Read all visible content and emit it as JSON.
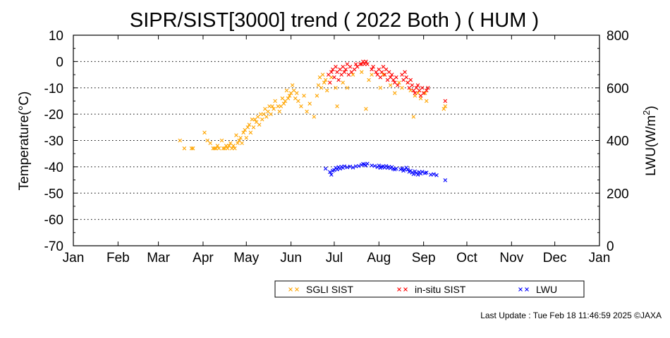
{
  "chart_data": {
    "type": "scatter",
    "title": "SIPR/SIST[3000] trend ( 2022 Both ) ( HUM )",
    "ylabel": "Temperature(°C)",
    "y2label_main": "LWU(W/m",
    "y2label_sup": "2",
    "y2label_end": ")",
    "xlim": [
      0,
      365
    ],
    "ylim": [
      -70,
      10
    ],
    "y2lim": [
      0,
      800
    ],
    "y_ticks": [
      10,
      0,
      -10,
      -20,
      -30,
      -40,
      -50,
      -60,
      -70
    ],
    "y2_ticks": [
      800,
      600,
      400,
      200,
      0
    ],
    "grid_values": [
      0,
      -10,
      -20,
      -30,
      -40,
      -50,
      -60
    ],
    "grid": true,
    "x_ticks": [
      {
        "day": 0,
        "label": "Jan"
      },
      {
        "day": 31,
        "label": "Feb"
      },
      {
        "day": 59,
        "label": "Mar"
      },
      {
        "day": 90,
        "label": "Apr"
      },
      {
        "day": 120,
        "label": "May"
      },
      {
        "day": 151,
        "label": "Jun"
      },
      {
        "day": 181,
        "label": "Jul"
      },
      {
        "day": 212,
        "label": "Aug"
      },
      {
        "day": 243,
        "label": "Sep"
      },
      {
        "day": 273,
        "label": "Oct"
      },
      {
        "day": 304,
        "label": "Nov"
      },
      {
        "day": 334,
        "label": "Dec"
      },
      {
        "day": 365,
        "label": "Jan"
      }
    ],
    "legend_position": "bottom",
    "series": [
      {
        "name": "SGLI SIST",
        "color": "#ffa500",
        "axis": "left",
        "points": [
          [
            74,
            -30
          ],
          [
            77,
            -33
          ],
          [
            82,
            -33
          ],
          [
            83,
            -33
          ],
          [
            91,
            -27
          ],
          [
            93,
            -30
          ],
          [
            95,
            -31
          ],
          [
            97,
            -33
          ],
          [
            98,
            -33
          ],
          [
            99,
            -33
          ],
          [
            100,
            -32
          ],
          [
            101,
            -33
          ],
          [
            103,
            -30
          ],
          [
            104,
            -33
          ],
          [
            105,
            -33
          ],
          [
            106,
            -32
          ],
          [
            107,
            -33
          ],
          [
            108,
            -32
          ],
          [
            109,
            -31
          ],
          [
            110,
            -33
          ],
          [
            111,
            -32
          ],
          [
            112,
            -33
          ],
          [
            113,
            -28
          ],
          [
            114,
            -31
          ],
          [
            115,
            -30
          ],
          [
            116,
            -29
          ],
          [
            117,
            -31
          ],
          [
            118,
            -27
          ],
          [
            119,
            -26
          ],
          [
            120,
            -29
          ],
          [
            121,
            -25
          ],
          [
            122,
            -24
          ],
          [
            123,
            -27
          ],
          [
            124,
            -22
          ],
          [
            125,
            -25
          ],
          [
            126,
            -22
          ],
          [
            127,
            -23
          ],
          [
            128,
            -21
          ],
          [
            129,
            -24
          ],
          [
            130,
            -20
          ],
          [
            131,
            -22
          ],
          [
            132,
            -20
          ],
          [
            133,
            -18
          ],
          [
            134,
            -21
          ],
          [
            135,
            -19
          ],
          [
            136,
            -17
          ],
          [
            137,
            -20
          ],
          [
            138,
            -17
          ],
          [
            139,
            -18
          ],
          [
            140,
            -15
          ],
          [
            142,
            -17
          ],
          [
            143,
            -19
          ],
          [
            144,
            -17
          ],
          [
            145,
            -14
          ],
          [
            146,
            -16
          ],
          [
            147,
            -15
          ],
          [
            148,
            -11
          ],
          [
            149,
            -14
          ],
          [
            150,
            -13
          ],
          [
            151,
            -12
          ],
          [
            152,
            -9
          ],
          [
            153,
            -11
          ],
          [
            154,
            -14
          ],
          [
            155,
            -12
          ],
          [
            156,
            -15
          ],
          [
            158,
            -17
          ],
          [
            160,
            -13
          ],
          [
            162,
            -19
          ],
          [
            164,
            -16
          ],
          [
            167,
            -21
          ],
          [
            169,
            -13
          ],
          [
            170,
            -9
          ],
          [
            171,
            -6
          ],
          [
            172,
            -10
          ],
          [
            173,
            -5
          ],
          [
            174,
            -8
          ],
          [
            175,
            -7
          ],
          [
            176,
            -11
          ],
          [
            179,
            -6
          ],
          [
            182,
            -10
          ],
          [
            183,
            -17
          ],
          [
            187,
            -8
          ],
          [
            190,
            -10
          ],
          [
            194,
            -5
          ],
          [
            200,
            -4
          ],
          [
            203,
            -18
          ],
          [
            205,
            -7
          ],
          [
            207,
            -5
          ],
          [
            213,
            -10
          ],
          [
            215,
            -5
          ],
          [
            220,
            -9
          ],
          [
            223,
            -12
          ],
          [
            226,
            -8
          ],
          [
            228,
            -10
          ],
          [
            232,
            -8
          ],
          [
            234,
            -11
          ],
          [
            236,
            -21
          ],
          [
            237,
            -13
          ],
          [
            239,
            -12
          ],
          [
            241,
            -14
          ],
          [
            244,
            -12
          ],
          [
            245,
            -15
          ],
          [
            257,
            -18
          ],
          [
            258,
            -17
          ]
        ]
      },
      {
        "name": "in-situ SIST",
        "color": "#ff0000",
        "axis": "left",
        "points": [
          [
            177,
            -5
          ],
          [
            178,
            -8
          ],
          [
            179,
            -4
          ],
          [
            180,
            -3
          ],
          [
            181,
            -6
          ],
          [
            182,
            -2
          ],
          [
            183,
            -4
          ],
          [
            184,
            -7
          ],
          [
            185,
            -3
          ],
          [
            186,
            -5
          ],
          [
            187,
            -2
          ],
          [
            188,
            -4
          ],
          [
            189,
            -3
          ],
          [
            190,
            -1
          ],
          [
            191,
            -5
          ],
          [
            192,
            -2
          ],
          [
            193,
            -4
          ],
          [
            195,
            -3
          ],
          [
            196,
            -1
          ],
          [
            197,
            -2
          ],
          [
            199,
            -1
          ],
          [
            200,
            -1
          ],
          [
            201,
            0
          ],
          [
            202,
            -1
          ],
          [
            203,
            0
          ],
          [
            204,
            -1
          ],
          [
            207,
            -3
          ],
          [
            208,
            -2
          ],
          [
            210,
            -4
          ],
          [
            211,
            -5
          ],
          [
            212,
            -3
          ],
          [
            213,
            -6
          ],
          [
            214,
            -4
          ],
          [
            215,
            -2
          ],
          [
            216,
            -5
          ],
          [
            217,
            -3
          ],
          [
            218,
            -7
          ],
          [
            219,
            -4
          ],
          [
            220,
            -6
          ],
          [
            221,
            -5
          ],
          [
            222,
            -7
          ],
          [
            223,
            -8
          ],
          [
            224,
            -6
          ],
          [
            225,
            -9
          ],
          [
            228,
            -5
          ],
          [
            229,
            -7
          ],
          [
            230,
            -4
          ],
          [
            231,
            -6
          ],
          [
            232,
            -8
          ],
          [
            233,
            -10
          ],
          [
            234,
            -7
          ],
          [
            235,
            -9
          ],
          [
            236,
            -11
          ],
          [
            237,
            -12
          ],
          [
            238,
            -10
          ],
          [
            239,
            -9
          ],
          [
            240,
            -11
          ],
          [
            241,
            -13
          ],
          [
            242,
            -10
          ],
          [
            243,
            -12
          ],
          [
            245,
            -11
          ],
          [
            246,
            -10
          ],
          [
            258,
            -15
          ]
        ]
      },
      {
        "name": "LWU",
        "color": "#0000ff",
        "axis": "right",
        "points": [
          [
            175,
            293
          ],
          [
            178,
            280
          ],
          [
            179,
            270
          ],
          [
            180,
            285
          ],
          [
            181,
            288
          ],
          [
            182,
            296
          ],
          [
            183,
            290
          ],
          [
            184,
            299
          ],
          [
            185,
            293
          ],
          [
            186,
            300
          ],
          [
            187,
            296
          ],
          [
            188,
            302
          ],
          [
            190,
            298
          ],
          [
            192,
            301
          ],
          [
            194,
            297
          ],
          [
            196,
            302
          ],
          [
            198,
            303
          ],
          [
            200,
            307
          ],
          [
            201,
            311
          ],
          [
            202,
            309
          ],
          [
            203,
            305
          ],
          [
            204,
            312
          ],
          [
            207,
            305
          ],
          [
            209,
            303
          ],
          [
            211,
            299
          ],
          [
            212,
            305
          ],
          [
            213,
            296
          ],
          [
            214,
            300
          ],
          [
            215,
            302
          ],
          [
            216,
            297
          ],
          [
            217,
            303
          ],
          [
            218,
            296
          ],
          [
            219,
            300
          ],
          [
            220,
            295
          ],
          [
            221,
            299
          ],
          [
            222,
            292
          ],
          [
            223,
            290
          ],
          [
            224,
            293
          ],
          [
            227,
            290
          ],
          [
            228,
            294
          ],
          [
            229,
            285
          ],
          [
            230,
            289
          ],
          [
            231,
            297
          ],
          [
            232,
            290
          ],
          [
            233,
            281
          ],
          [
            234,
            285
          ],
          [
            235,
            278
          ],
          [
            236,
            272
          ],
          [
            237,
            283
          ],
          [
            238,
            276
          ],
          [
            239,
            270
          ],
          [
            240,
            280
          ],
          [
            241,
            274
          ],
          [
            242,
            281
          ],
          [
            244,
            276
          ],
          [
            245,
            278
          ],
          [
            248,
            270
          ],
          [
            250,
            272
          ],
          [
            252,
            268
          ],
          [
            258,
            249
          ]
        ]
      }
    ],
    "footer": "Last Update : Tue Feb 18 11:46:59 2025  ©JAXA"
  }
}
